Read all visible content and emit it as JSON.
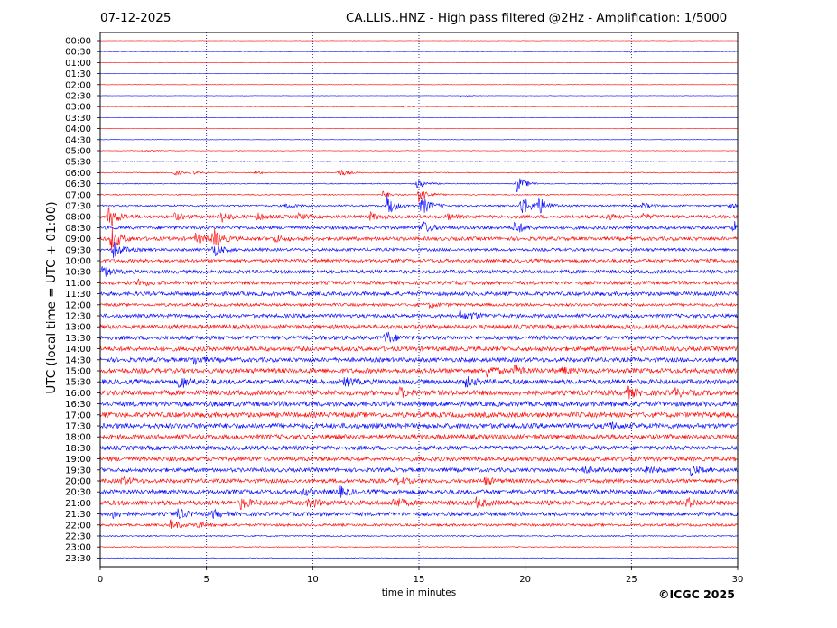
{
  "header": {
    "date": "07-12-2025",
    "title": "CA.LLIS..HNZ - High pass filtered @2Hz - Amplification: 1/5000"
  },
  "footer": {
    "copyright": "©ICGC 2025"
  },
  "chart_data": {
    "type": "line",
    "xlabel": "time in minutes",
    "ylabel": "UTC (local time = UTC + 01:00)",
    "xlim": [
      0,
      30
    ],
    "x_ticks": [
      "0",
      "5",
      "10",
      "15",
      "20",
      "25",
      "30"
    ],
    "x_tick_values": [
      0,
      5,
      10,
      15,
      20,
      25,
      30
    ],
    "grid": "vertical dotted at 5, 10, 15, 20, 25 minutes",
    "trace_colors": [
      "#ff0000",
      "#0000ff"
    ],
    "row_labels": [
      "00:00",
      "00:30",
      "01:00",
      "01:30",
      "02:00",
      "02:30",
      "03:00",
      "03:30",
      "04:00",
      "04:30",
      "05:00",
      "05:30",
      "06:00",
      "06:30",
      "07:00",
      "07:30",
      "08:00",
      "08:30",
      "09:00",
      "09:30",
      "10:00",
      "10:30",
      "11:00",
      "11:30",
      "12:00",
      "12:30",
      "13:00",
      "13:30",
      "14:00",
      "14:30",
      "15:00",
      "15:30",
      "16:00",
      "16:30",
      "17:00",
      "17:30",
      "18:00",
      "18:30",
      "19:00",
      "19:30",
      "20:00",
      "20:30",
      "21:00",
      "21:30",
      "22:00",
      "22:30",
      "23:00",
      "23:30"
    ],
    "noise_level": [
      0.2,
      0.2,
      0.2,
      0.2,
      0.2,
      0.2,
      0.2,
      0.2,
      0.2,
      0.2,
      0.3,
      0.4,
      0.5,
      0.5,
      0.6,
      1.0,
      1.8,
      1.8,
      2.0,
      1.6,
      1.8,
      2.0,
      2.0,
      2.2,
      1.6,
      2.0,
      2.4,
      2.2,
      2.4,
      2.4,
      2.6,
      2.6,
      2.8,
      2.8,
      2.8,
      2.8,
      2.6,
      2.4,
      2.4,
      2.2,
      2.2,
      2.4,
      2.6,
      2.2,
      1.4,
      0.7,
      0.5,
      0.4
    ],
    "events": [
      {
        "row": 1,
        "t": 24.8,
        "amp": 2
      },
      {
        "row": 5,
        "t": 17.0,
        "amp": 1
      },
      {
        "row": 6,
        "t": 14.2,
        "amp": 1.5
      },
      {
        "row": 10,
        "t": 2.0,
        "amp": 1.5
      },
      {
        "row": 12,
        "t": 3.5,
        "amp": 3
      },
      {
        "row": 12,
        "t": 4.3,
        "amp": 2
      },
      {
        "row": 12,
        "t": 7.3,
        "amp": 2
      },
      {
        "row": 12,
        "t": 11.2,
        "amp": 5
      },
      {
        "row": 13,
        "t": 14.9,
        "amp": 6
      },
      {
        "row": 13,
        "t": 19.6,
        "amp": 10
      },
      {
        "row": 14,
        "t": 13.3,
        "amp": 4
      },
      {
        "row": 14,
        "t": 15.0,
        "amp": 10
      },
      {
        "row": 15,
        "t": 13.5,
        "amp": 12
      },
      {
        "row": 15,
        "t": 15.1,
        "amp": 12
      },
      {
        "row": 15,
        "t": 19.8,
        "amp": 14
      },
      {
        "row": 15,
        "t": 20.6,
        "amp": 10
      },
      {
        "row": 15,
        "t": 8.7,
        "amp": 3
      },
      {
        "row": 15,
        "t": 25.5,
        "amp": 3
      },
      {
        "row": 15,
        "t": 29.5,
        "amp": 3
      },
      {
        "row": 16,
        "t": 0.4,
        "amp": 14
      },
      {
        "row": 16,
        "t": 3.5,
        "amp": 4
      },
      {
        "row": 16,
        "t": 5.7,
        "amp": 6
      },
      {
        "row": 16,
        "t": 7.4,
        "amp": 4
      },
      {
        "row": 16,
        "t": 9.3,
        "amp": 3
      },
      {
        "row": 16,
        "t": 12.7,
        "amp": 4
      },
      {
        "row": 16,
        "t": 16.3,
        "amp": 3
      },
      {
        "row": 16,
        "t": 23.8,
        "amp": 3
      },
      {
        "row": 16,
        "t": 25.5,
        "amp": 3
      },
      {
        "row": 17,
        "t": 15.1,
        "amp": 8
      },
      {
        "row": 17,
        "t": 19.5,
        "amp": 8
      },
      {
        "row": 17,
        "t": 29.8,
        "amp": 8
      },
      {
        "row": 18,
        "t": 0.5,
        "amp": 14
      },
      {
        "row": 18,
        "t": 5.3,
        "amp": 12
      },
      {
        "row": 18,
        "t": 8.2,
        "amp": 4
      },
      {
        "row": 18,
        "t": 4.5,
        "amp": 6
      },
      {
        "row": 19,
        "t": 5.3,
        "amp": 8
      },
      {
        "row": 19,
        "t": 0.6,
        "amp": 10
      },
      {
        "row": 21,
        "t": 0.1,
        "amp": 6
      },
      {
        "row": 22,
        "t": 1.8,
        "amp": 5
      },
      {
        "row": 24,
        "t": 15.5,
        "amp": 3
      },
      {
        "row": 25,
        "t": 16.9,
        "amp": 5
      },
      {
        "row": 25,
        "t": 17.5,
        "amp": 3
      },
      {
        "row": 27,
        "t": 13.4,
        "amp": 8
      },
      {
        "row": 29,
        "t": 4.4,
        "amp": 4
      },
      {
        "row": 30,
        "t": 18.2,
        "amp": 6
      },
      {
        "row": 30,
        "t": 19.5,
        "amp": 6
      },
      {
        "row": 30,
        "t": 21.7,
        "amp": 4
      },
      {
        "row": 31,
        "t": 3.7,
        "amp": 8
      },
      {
        "row": 31,
        "t": 11.5,
        "amp": 5
      },
      {
        "row": 31,
        "t": 17.2,
        "amp": 5
      },
      {
        "row": 32,
        "t": 14.1,
        "amp": 5
      },
      {
        "row": 32,
        "t": 24.7,
        "amp": 8
      },
      {
        "row": 32,
        "t": 27.0,
        "amp": 5
      },
      {
        "row": 35,
        "t": 23.9,
        "amp": 5
      },
      {
        "row": 39,
        "t": 22.7,
        "amp": 4
      },
      {
        "row": 39,
        "t": 25.7,
        "amp": 4
      },
      {
        "row": 39,
        "t": 27.8,
        "amp": 5
      },
      {
        "row": 40,
        "t": 1.0,
        "amp": 5
      },
      {
        "row": 40,
        "t": 14.0,
        "amp": 4
      },
      {
        "row": 40,
        "t": 18.1,
        "amp": 4
      },
      {
        "row": 41,
        "t": 11.2,
        "amp": 6
      },
      {
        "row": 41,
        "t": 9.5,
        "amp": 4
      },
      {
        "row": 42,
        "t": 6.6,
        "amp": 6
      },
      {
        "row": 42,
        "t": 9.8,
        "amp": 5
      },
      {
        "row": 42,
        "t": 13.8,
        "amp": 6
      },
      {
        "row": 42,
        "t": 17.7,
        "amp": 5
      },
      {
        "row": 42,
        "t": 27.6,
        "amp": 5
      },
      {
        "row": 43,
        "t": 0.6,
        "amp": 4
      },
      {
        "row": 43,
        "t": 3.6,
        "amp": 6
      },
      {
        "row": 43,
        "t": 5.3,
        "amp": 4
      },
      {
        "row": 44,
        "t": 3.3,
        "amp": 6
      },
      {
        "row": 44,
        "t": 4.5,
        "amp": 4
      }
    ]
  }
}
